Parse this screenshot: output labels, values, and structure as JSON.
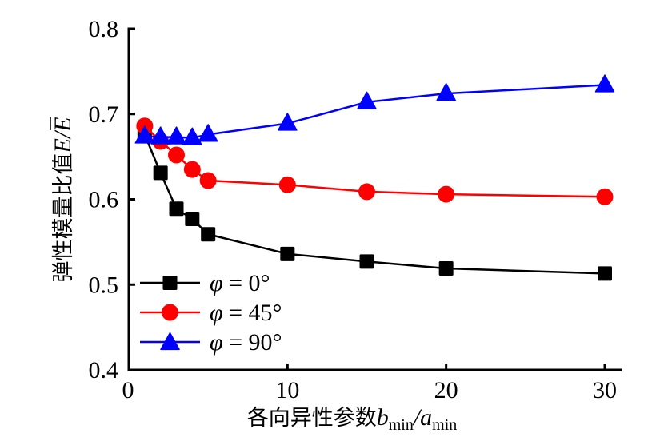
{
  "chart_data": {
    "type": "line",
    "title": "",
    "xlabel": "各向异性参数b_min/a_min",
    "xlabel_parts": {
      "prefix": "各向异性参数",
      "b": "b",
      "b_sub": "min",
      "slash": "/",
      "a": "a",
      "a_sub": "min"
    },
    "ylabel": "弹性模量比值E/Ē",
    "ylabel_parts": {
      "prefix": "弹性模量比值",
      "e1": "E",
      "slash": "/",
      "e2": "E"
    },
    "xlim": [
      0,
      31
    ],
    "ylim": [
      0.4,
      0.8
    ],
    "xticks": [
      0,
      10,
      20,
      30
    ],
    "xtick_labels": [
      "0",
      "10",
      "20",
      "30"
    ],
    "yticks": [
      0.4,
      0.5,
      0.6,
      0.7,
      0.8
    ],
    "ytick_labels": [
      "0.4",
      "0.5",
      "0.6",
      "0.7",
      "0.8"
    ],
    "grid": false,
    "legend_position": "bottom-left",
    "x": [
      1,
      2,
      3,
      4,
      5,
      10,
      15,
      20,
      30
    ],
    "series": [
      {
        "name": "φ = 0°",
        "legend_phi": "φ",
        "legend_rest": " = 0°",
        "color": "#000000",
        "marker": "square",
        "values": [
          0.676,
          0.631,
          0.589,
          0.577,
          0.559,
          0.536,
          0.527,
          0.519,
          0.513
        ]
      },
      {
        "name": "φ = 45°",
        "legend_phi": "φ",
        "legend_rest": " = 45°",
        "color": "#ff0000",
        "marker": "circle",
        "values": [
          0.686,
          0.668,
          0.652,
          0.635,
          0.622,
          0.617,
          0.609,
          0.606,
          0.603
        ]
      },
      {
        "name": "φ = 90°",
        "legend_phi": "φ",
        "legend_rest": " = 90°",
        "color": "#0000ff",
        "marker": "triangle",
        "values": [
          0.674,
          0.673,
          0.673,
          0.672,
          0.676,
          0.689,
          0.714,
          0.724,
          0.734
        ]
      }
    ]
  }
}
